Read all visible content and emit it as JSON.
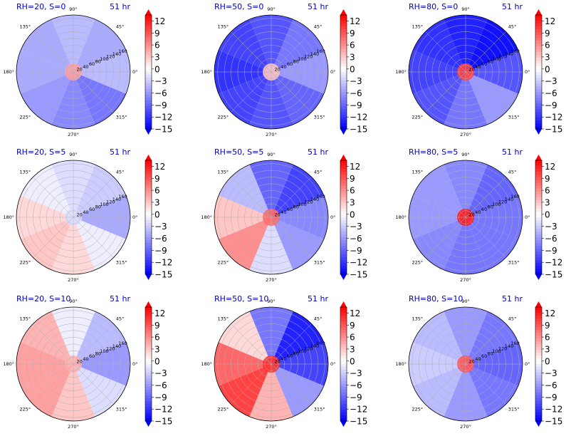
{
  "chart_data": {
    "type": "polar-contour-grid",
    "rows": 3,
    "cols": 3,
    "colorbar": {
      "ticks": [
        "12",
        "9",
        "6",
        "3",
        "0",
        "−3",
        "−6",
        "−9",
        "−12",
        "−15"
      ],
      "range": [
        -15,
        13.5
      ],
      "colormap": "bwr",
      "extend": "both"
    },
    "angular_ticks": [
      "90°",
      "45°",
      "0°",
      "315°",
      "270°",
      "225°",
      "180°",
      "135°"
    ],
    "radial_ticks": [
      "20",
      "40",
      "60",
      "80",
      "100",
      "120",
      "140",
      "160"
    ],
    "panels": [
      {
        "title": "RH=20, S=0",
        "time": "51 hr",
        "values": [
          -4,
          -5,
          -4,
          -5,
          -5,
          -6,
          -7,
          -8
        ],
        "core": 5
      },
      {
        "title": "RH=50, S=0",
        "time": "51 hr",
        "values": [
          -6,
          -8,
          -10,
          -11,
          -12,
          -11,
          -10,
          -9
        ],
        "core": 3
      },
      {
        "title": "RH=80, S=0",
        "time": "51 hr",
        "values": [
          -10,
          -14,
          -13,
          -12,
          -11,
          -10,
          -8,
          -6
        ],
        "core": 10
      },
      {
        "title": "RH=20, S=5",
        "time": "51 hr",
        "values": [
          -5,
          -3,
          -2,
          -1,
          2,
          3,
          2,
          -1
        ],
        "core": -2
      },
      {
        "title": "RH=50, S=5",
        "time": "51 hr",
        "values": [
          -7,
          -11,
          -9,
          -4,
          3,
          6,
          -2,
          -6
        ],
        "core": 8
      },
      {
        "title": "RH=80, S=5",
        "time": "51 hr",
        "values": [
          -8,
          -9,
          -7,
          -6,
          -6,
          -7,
          -8,
          -8
        ],
        "core": 12
      },
      {
        "title": "RH=20, S=10",
        "time": "51 hr",
        "values": [
          -6,
          -4,
          -1,
          4,
          5,
          5,
          3,
          -2
        ],
        "core": 4
      },
      {
        "title": "RH=50, S=10",
        "time": "51 hr",
        "values": [
          -11,
          -13,
          -8,
          2,
          8,
          10,
          4,
          -6
        ],
        "core": 11
      },
      {
        "title": "RH=80, S=10",
        "time": "51 hr",
        "values": [
          -9,
          -8,
          -6,
          -4,
          -3,
          -4,
          -6,
          -8
        ],
        "core": 9
      }
    ],
    "colors": {
      "negative": "#0000ff",
      "positive": "#ff0000",
      "zero": "#ffffff",
      "title": "#0000cc",
      "grid": "#b0b0b0"
    }
  }
}
